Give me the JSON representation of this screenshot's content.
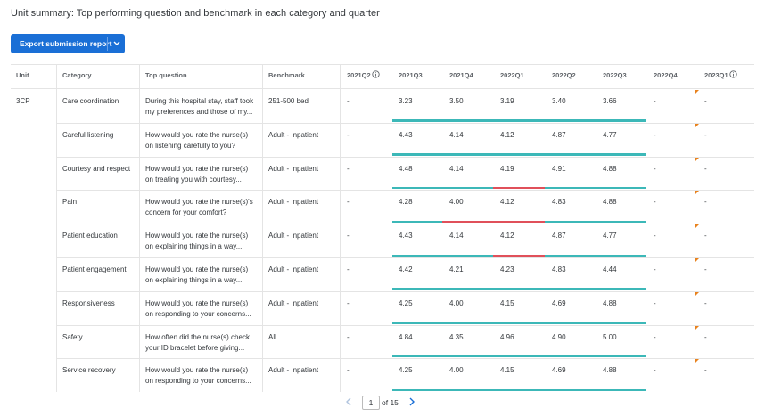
{
  "header": {
    "title": "Unit summary: Top performing question and benchmark in each category and quarter",
    "button": "Export submission report"
  },
  "table": {
    "columns": [
      "Unit",
      "Category",
      "Top question",
      "Benchmark",
      "2021Q2",
      "2021Q3",
      "2021Q4",
      "2022Q1",
      "2022Q2",
      "2022Q3",
      "2022Q4",
      "2023Q1"
    ],
    "rows": [
      {
        "unit": "3CP",
        "category": "Care coordination",
        "question_lines": [
          "During this hospital stay, staff took",
          "my preferences and those of my..."
        ],
        "benchmark": "251-500 bed",
        "cells": [
          "-",
          "3.23",
          "3.50",
          "3.19",
          "3.40",
          "3.66",
          "-",
          "-"
        ],
        "bar_colors": [
          "#3cb8b8",
          "#3cb8b8",
          "#3cb8b8",
          "#3cb8b8",
          "#3cb8b8"
        ]
      },
      {
        "category": "Careful listening",
        "question_lines": [
          "How would you rate the nurse(s)",
          "on listening carefully to you?"
        ],
        "benchmark": "Adult - Inpatient",
        "cells": [
          "-",
          "4.43",
          "4.14",
          "4.12",
          "4.87",
          "4.77",
          "-",
          "-"
        ],
        "bar_colors": [
          "#3cb8b8",
          "#3cb8b8",
          "#3cb8b8",
          "#3cb8b8",
          "#3cb8b8"
        ]
      },
      {
        "category": "Courtesy and respect",
        "question_lines": [
          "How would you rate the nurse(s)",
          "on treating you with courtesy..."
        ],
        "benchmark": "Adult - Inpatient",
        "cells": [
          "-",
          "4.48",
          "4.14",
          "4.19",
          "4.91",
          "4.88",
          "-",
          "-"
        ],
        "bar_colors": [
          "#3cb8b8",
          "#3cb8b8",
          "#e0505a",
          "#3cb8b8",
          "#3cb8b8"
        ]
      },
      {
        "category": "Pain",
        "question_lines": [
          "How would you rate the nurse(s)'s",
          "concern for your comfort?"
        ],
        "benchmark": "Adult - Inpatient",
        "cells": [
          "-",
          "4.28",
          "4.00",
          "4.12",
          "4.83",
          "4.88",
          "-",
          "-"
        ],
        "bar_colors": [
          "#3cb8b8",
          "#e0505a",
          "#e0505a",
          "#3cb8b8",
          "#3cb8b8"
        ]
      },
      {
        "category": "Patient education",
        "question_lines": [
          "How would you rate the nurse(s)",
          "on explaining things in a way..."
        ],
        "benchmark": "Adult - Inpatient",
        "cells": [
          "-",
          "4.43",
          "4.14",
          "4.12",
          "4.87",
          "4.77",
          "-",
          "-"
        ],
        "bar_colors": [
          "#3cb8b8",
          "#3cb8b8",
          "#e0505a",
          "#3cb8b8",
          "#3cb8b8"
        ]
      },
      {
        "category": "Patient engagement",
        "question_lines": [
          "How would you rate the nurse(s)",
          "on explaining things in a way..."
        ],
        "benchmark": "Adult - Inpatient",
        "cells": [
          "-",
          "4.42",
          "4.21",
          "4.23",
          "4.83",
          "4.44",
          "-",
          "-"
        ],
        "bar_colors": [
          "#3cb8b8",
          "#3cb8b8",
          "#3cb8b8",
          "#3cb8b8",
          "#3cb8b8"
        ]
      },
      {
        "category": "Responsiveness",
        "question_lines": [
          "How would you rate the nurse(s)",
          "on responding to your concerns..."
        ],
        "benchmark": "Adult - Inpatient",
        "cells": [
          "-",
          "4.25",
          "4.00",
          "4.15",
          "4.69",
          "4.88",
          "-",
          "-"
        ],
        "bar_colors": [
          "#3cb8b8",
          "#3cb8b8",
          "#3cb8b8",
          "#3cb8b8",
          "#3cb8b8"
        ]
      },
      {
        "category": "Safety",
        "question_lines": [
          "How often did the nurse(s) check",
          "your ID bracelet before giving..."
        ],
        "benchmark": "All",
        "cells": [
          "-",
          "4.84",
          "4.35",
          "4.96",
          "4.90",
          "5.00",
          "-",
          "-"
        ],
        "bar_colors": [
          "#3cb8b8",
          "#3cb8b8",
          "#3cb8b8",
          "#3cb8b8",
          "#3cb8b8"
        ]
      },
      {
        "category": "Service recovery",
        "question_lines": [
          "How would you rate the nurse(s)",
          "on responding to your concerns..."
        ],
        "benchmark": "Adult - Inpatient",
        "cells": [
          "-",
          "4.25",
          "4.00",
          "4.15",
          "4.69",
          "4.88",
          "-",
          "-"
        ],
        "bar_colors": [
          "#3cb8b8",
          "#3cb8b8",
          "#3cb8b8",
          "#3cb8b8",
          "#3cb8b8"
        ]
      }
    ]
  },
  "pagination": {
    "page": "1",
    "of": "of 15"
  }
}
